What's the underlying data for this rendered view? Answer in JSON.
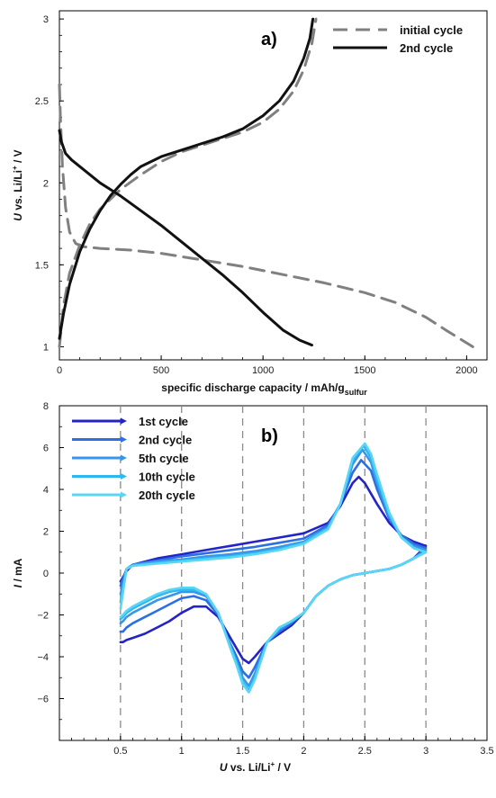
{
  "figure": {
    "background": "#ffffff"
  },
  "chart_data": [
    {
      "type": "line",
      "panel_label": "a)",
      "xlabel_main": "specific discharge capacity / mAh/g",
      "xlabel_sub": "sulfur",
      "ylabel_italic": "U",
      "ylabel_main": " vs. Li/Li",
      "ylabel_sup": "+",
      "ylabel_tail": " / V",
      "xlim": [
        0,
        2100
      ],
      "ylim": [
        0.92,
        3.05
      ],
      "xticks": [
        0,
        500,
        1000,
        1500,
        2000
      ],
      "xtick_labels": [
        "0",
        "500",
        "1000",
        "1500",
        "2000"
      ],
      "yticks": [
        1,
        1.5,
        2,
        2.5,
        3
      ],
      "ytick_labels": [
        "1",
        "1.5",
        "2",
        "2.5",
        "3"
      ],
      "grid": false,
      "legend_position": "top-right",
      "series": [
        {
          "name": "initial cycle",
          "color": "#808080",
          "style": "dashed",
          "segments": [
            {
              "part": "discharge",
              "x": [
                0,
                5,
                15,
                30,
                50,
                80,
                120,
                200,
                350,
                500,
                700,
                900,
                1100,
                1300,
                1500,
                1650,
                1800,
                1900,
                2030
              ],
              "y": [
                2.6,
                2.4,
                2.1,
                1.85,
                1.7,
                1.63,
                1.61,
                1.6,
                1.59,
                1.57,
                1.53,
                1.49,
                1.44,
                1.39,
                1.33,
                1.27,
                1.18,
                1.1,
                1.0
              ]
            },
            {
              "part": "charge",
              "x": [
                0,
                20,
                50,
                100,
                150,
                200,
                300,
                400,
                500,
                600,
                700,
                800,
                900,
                1000,
                1080,
                1150,
                1200,
                1240,
                1260
              ],
              "y": [
                1.0,
                1.25,
                1.45,
                1.62,
                1.75,
                1.84,
                1.96,
                2.05,
                2.13,
                2.19,
                2.23,
                2.27,
                2.31,
                2.37,
                2.45,
                2.56,
                2.69,
                2.85,
                3.0
              ]
            }
          ]
        },
        {
          "name": "2nd cycle",
          "color": "#111111",
          "style": "solid",
          "segments": [
            {
              "part": "discharge",
              "x": [
                0,
                10,
                30,
                60,
                100,
                150,
                200,
                300,
                400,
                500,
                600,
                700,
                800,
                900,
                1000,
                1100,
                1180,
                1240
              ],
              "y": [
                2.32,
                2.25,
                2.18,
                2.14,
                2.1,
                2.05,
                2.0,
                1.92,
                1.83,
                1.74,
                1.64,
                1.54,
                1.44,
                1.33,
                1.21,
                1.1,
                1.04,
                1.01
              ]
            },
            {
              "part": "charge",
              "x": [
                0,
                20,
                50,
                100,
                150,
                200,
                250,
                300,
                350,
                400,
                500,
                600,
                700,
                800,
                900,
                1000,
                1080,
                1150,
                1200,
                1230,
                1245
              ],
              "y": [
                1.05,
                1.2,
                1.38,
                1.58,
                1.72,
                1.83,
                1.92,
                1.99,
                2.05,
                2.1,
                2.16,
                2.2,
                2.24,
                2.28,
                2.33,
                2.41,
                2.5,
                2.62,
                2.76,
                2.88,
                3.0
              ]
            }
          ]
        }
      ]
    },
    {
      "type": "line",
      "panel_label": "b)",
      "xlabel_italic": "U",
      "xlabel_main": " vs. Li/Li",
      "xlabel_sup": "+",
      "xlabel_tail": " / V",
      "ylabel_italic": "I",
      "ylabel_main": " / mA",
      "xlim": [
        0,
        3.5
      ],
      "ylim": [
        -8,
        8
      ],
      "xticks": [
        0.5,
        1,
        1.5,
        2,
        2.5,
        3,
        3.5
      ],
      "xtick_labels": [
        "0.5",
        "1",
        "1.5",
        "2",
        "2.5",
        "3",
        "3.5"
      ],
      "yticks": [
        -8,
        -6,
        -4,
        -2,
        0,
        2,
        4,
        6,
        8
      ],
      "ytick_labels": [
        "",
        "−6",
        "−4",
        "−2",
        "0",
        "2",
        "4",
        "6",
        "8"
      ],
      "vertical_dashed_lines": [
        0.5,
        1,
        1.5,
        2,
        2.5,
        3
      ],
      "grid": false,
      "legend_position": "top-left",
      "series": [
        {
          "name": "1st cycle",
          "color": "#2323c8",
          "oxidation_peak": [
            2.45,
            4.6
          ],
          "reduction_peaks": [
            [
              1.55,
              -4.3
            ],
            [
              1.95,
              -2.6
            ]
          ],
          "x": [
            0.5,
            0.55,
            0.6,
            0.8,
            1.0,
            1.2,
            1.4,
            1.6,
            1.8,
            2.0,
            2.2,
            2.3,
            2.4,
            2.45,
            2.5,
            2.6,
            2.7,
            2.8,
            2.9,
            3.0,
            2.9,
            2.8,
            2.7,
            2.6,
            2.5,
            2.4,
            2.3,
            2.2,
            2.1,
            2.0,
            1.9,
            1.8,
            1.7,
            1.6,
            1.55,
            1.5,
            1.45,
            1.4,
            1.3,
            1.2,
            1.1,
            1.0,
            0.9,
            0.8,
            0.7,
            0.6,
            0.55,
            0.52,
            0.5
          ],
          "y": [
            -0.4,
            0.1,
            0.4,
            0.7,
            0.9,
            1.1,
            1.3,
            1.5,
            1.7,
            1.9,
            2.4,
            3.2,
            4.3,
            4.6,
            4.3,
            3.3,
            2.4,
            1.8,
            1.5,
            1.3,
            0.7,
            0.4,
            0.2,
            0.1,
            0.0,
            -0.1,
            -0.3,
            -0.6,
            -1.1,
            -1.9,
            -2.5,
            -2.9,
            -3.3,
            -4.0,
            -4.3,
            -4.1,
            -3.6,
            -3.1,
            -2.1,
            -1.6,
            -1.6,
            -1.9,
            -2.3,
            -2.6,
            -2.9,
            -3.1,
            -3.2,
            -3.3,
            -3.3
          ]
        },
        {
          "name": "2nd cycle",
          "color": "#2b6fe0",
          "oxidation_peak": [
            2.47,
            5.4
          ],
          "reduction_peaks": [
            [
              1.55,
              -5.0
            ],
            [
              1.95,
              -2.5
            ]
          ],
          "x": [
            0.5,
            0.55,
            0.6,
            0.8,
            1.0,
            1.2,
            1.4,
            1.6,
            1.8,
            2.0,
            2.2,
            2.3,
            2.4,
            2.47,
            2.55,
            2.6,
            2.7,
            2.8,
            2.9,
            3.0,
            2.9,
            2.8,
            2.7,
            2.6,
            2.5,
            2.4,
            2.3,
            2.2,
            2.1,
            2.0,
            1.9,
            1.8,
            1.7,
            1.6,
            1.55,
            1.5,
            1.45,
            1.4,
            1.3,
            1.2,
            1.1,
            1.0,
            0.9,
            0.8,
            0.7,
            0.6,
            0.55,
            0.52,
            0.5
          ],
          "y": [
            -0.6,
            0.2,
            0.4,
            0.6,
            0.8,
            0.95,
            1.1,
            1.25,
            1.45,
            1.65,
            2.3,
            3.3,
            4.8,
            5.4,
            4.9,
            4.0,
            2.6,
            1.8,
            1.4,
            1.2,
            0.7,
            0.4,
            0.2,
            0.1,
            0.0,
            -0.1,
            -0.3,
            -0.6,
            -1.1,
            -1.9,
            -2.4,
            -2.8,
            -3.3,
            -4.5,
            -5.0,
            -4.7,
            -4.0,
            -3.4,
            -2.0,
            -1.3,
            -1.1,
            -1.2,
            -1.5,
            -1.8,
            -2.1,
            -2.4,
            -2.6,
            -2.8,
            -2.8
          ]
        },
        {
          "name": "5th cycle",
          "color": "#3a95ea",
          "oxidation_peak": [
            2.48,
            5.9
          ],
          "reduction_peaks": [
            [
              1.55,
              -5.4
            ],
            [
              1.95,
              -2.4
            ]
          ],
          "x": [
            0.5,
            0.55,
            0.6,
            0.8,
            1.0,
            1.2,
            1.4,
            1.6,
            1.8,
            2.0,
            2.2,
            2.3,
            2.4,
            2.48,
            2.55,
            2.6,
            2.7,
            2.8,
            2.9,
            3.0,
            2.9,
            2.8,
            2.7,
            2.6,
            2.5,
            2.4,
            2.3,
            2.2,
            2.1,
            2.0,
            1.9,
            1.8,
            1.7,
            1.6,
            1.55,
            1.5,
            1.45,
            1.4,
            1.3,
            1.2,
            1.1,
            1.0,
            0.9,
            0.8,
            0.7,
            0.6,
            0.55,
            0.52,
            0.5
          ],
          "y": [
            -1.0,
            0.2,
            0.4,
            0.55,
            0.65,
            0.8,
            0.9,
            1.05,
            1.25,
            1.5,
            2.2,
            3.3,
            5.2,
            5.9,
            5.3,
            4.3,
            2.7,
            1.7,
            1.3,
            1.1,
            0.7,
            0.4,
            0.2,
            0.1,
            0.0,
            -0.1,
            -0.3,
            -0.6,
            -1.1,
            -1.9,
            -2.3,
            -2.7,
            -3.3,
            -4.8,
            -5.4,
            -5.0,
            -4.2,
            -3.5,
            -1.9,
            -1.1,
            -0.9,
            -0.9,
            -1.1,
            -1.3,
            -1.6,
            -1.9,
            -2.1,
            -2.3,
            -2.4
          ]
        },
        {
          "name": "10th cycle",
          "color": "#2cb8f0",
          "oxidation_peak": [
            2.49,
            6.1
          ],
          "reduction_peaks": [
            [
              1.55,
              -5.6
            ],
            [
              1.95,
              -2.4
            ]
          ],
          "x": [
            0.5,
            0.55,
            0.6,
            0.8,
            1.0,
            1.2,
            1.4,
            1.6,
            1.8,
            2.0,
            2.2,
            2.3,
            2.4,
            2.49,
            2.55,
            2.6,
            2.7,
            2.8,
            2.9,
            3.0,
            2.9,
            2.8,
            2.7,
            2.6,
            2.5,
            2.4,
            2.3,
            2.2,
            2.1,
            2.0,
            1.9,
            1.8,
            1.7,
            1.6,
            1.55,
            1.5,
            1.45,
            1.4,
            1.3,
            1.2,
            1.1,
            1.0,
            0.9,
            0.8,
            0.7,
            0.6,
            0.55,
            0.52,
            0.5
          ],
          "y": [
            -1.4,
            0.2,
            0.35,
            0.5,
            0.6,
            0.7,
            0.8,
            0.95,
            1.15,
            1.45,
            2.15,
            3.3,
            5.4,
            6.1,
            5.5,
            4.5,
            2.8,
            1.7,
            1.2,
            1.0,
            0.7,
            0.4,
            0.2,
            0.1,
            0.0,
            -0.1,
            -0.3,
            -0.6,
            -1.1,
            -1.9,
            -2.3,
            -2.6,
            -3.3,
            -5.0,
            -5.6,
            -5.2,
            -4.3,
            -3.5,
            -1.9,
            -1.0,
            -0.8,
            -0.8,
            -0.9,
            -1.1,
            -1.4,
            -1.7,
            -1.9,
            -2.1,
            -2.2
          ]
        },
        {
          "name": "20th cycle",
          "color": "#5ad6f5",
          "oxidation_peak": [
            2.5,
            6.2
          ],
          "reduction_peaks": [
            [
              1.55,
              -5.7
            ],
            [
              1.95,
              -2.4
            ]
          ],
          "x": [
            0.5,
            0.55,
            0.6,
            0.8,
            1.0,
            1.2,
            1.4,
            1.6,
            1.8,
            2.0,
            2.2,
            2.3,
            2.4,
            2.5,
            2.55,
            2.6,
            2.7,
            2.8,
            2.9,
            3.0,
            2.9,
            2.8,
            2.7,
            2.6,
            2.5,
            2.4,
            2.3,
            2.2,
            2.1,
            2.0,
            1.9,
            1.8,
            1.7,
            1.6,
            1.55,
            1.5,
            1.45,
            1.4,
            1.3,
            1.2,
            1.1,
            1.0,
            0.9,
            0.8,
            0.7,
            0.6,
            0.55,
            0.52,
            0.5
          ],
          "y": [
            -1.7,
            0.2,
            0.35,
            0.45,
            0.55,
            0.65,
            0.75,
            0.9,
            1.1,
            1.4,
            2.1,
            3.3,
            5.5,
            6.2,
            5.7,
            4.7,
            2.9,
            1.7,
            1.2,
            1.0,
            0.7,
            0.4,
            0.2,
            0.1,
            0.0,
            -0.1,
            -0.3,
            -0.6,
            -1.1,
            -1.9,
            -2.3,
            -2.6,
            -3.3,
            -5.1,
            -5.7,
            -5.3,
            -4.4,
            -3.6,
            -1.9,
            -1.0,
            -0.7,
            -0.7,
            -0.8,
            -1.0,
            -1.3,
            -1.6,
            -1.8,
            -2.0,
            -2.1
          ]
        }
      ]
    }
  ]
}
